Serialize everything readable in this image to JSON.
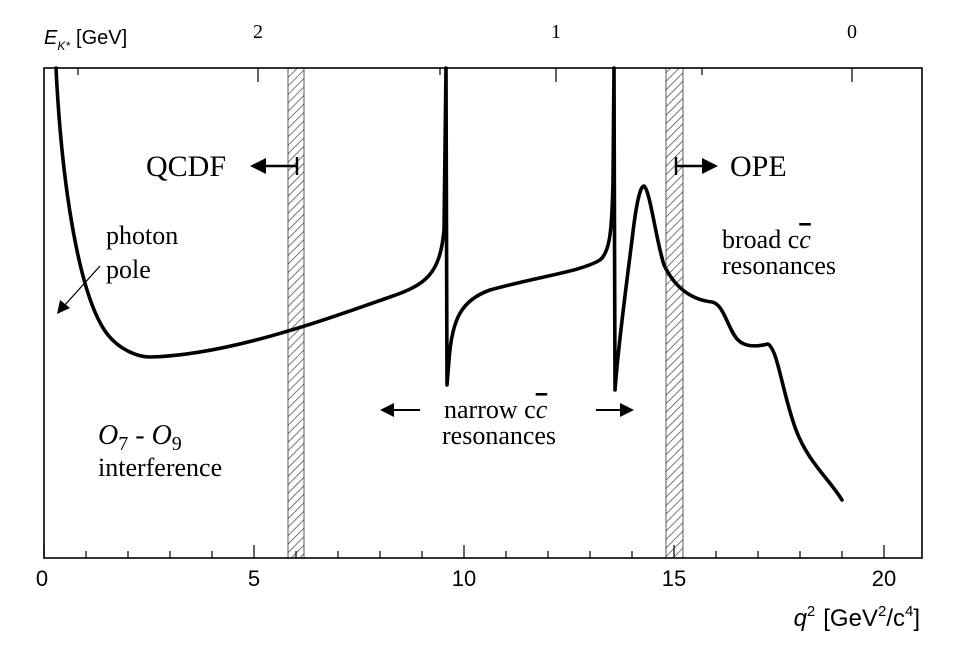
{
  "figure": {
    "top_axis": {
      "label_main": "E",
      "label_sub": "K*",
      "label_unit": "[GeV]",
      "tick_labels": [
        "2",
        "1",
        "0"
      ]
    },
    "bottom_axis": {
      "tick_labels": [
        "0",
        "5",
        "10",
        "15",
        "20"
      ],
      "label_var": "q",
      "label_pow": "2",
      "label_unit_open": "[GeV",
      "label_unit_pow1": "2",
      "label_unit_mid": "/c",
      "label_unit_pow2": "4",
      "label_unit_close": "]"
    },
    "annotations": {
      "qcdf": "QCDF",
      "ope": "OPE",
      "photon": "photon",
      "pole": "pole",
      "broad_line1_a": "broad c",
      "broad_line1_b": "c",
      "broad_line2": "resonances",
      "narrow_line1_a": "narrow c",
      "narrow_line1_b": "c",
      "narrow_line2": "resonances",
      "o_a": "O",
      "o_a_sub": "7",
      "o_sep": " - ",
      "o_b": "O",
      "o_b_sub": "9",
      "interference": "interference"
    },
    "colors": {
      "curve": "#000000",
      "band_hatch": "#555555"
    }
  }
}
